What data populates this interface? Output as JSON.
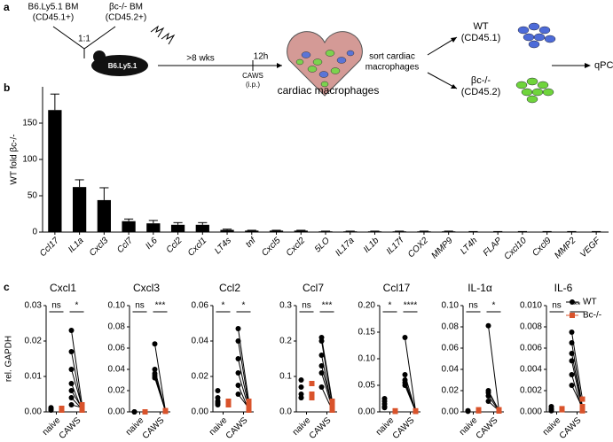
{
  "panel_labels": [
    "a",
    "b",
    "c"
  ],
  "schematic": {
    "donor1": [
      "B6.Ly5.1 BM",
      "(CD45.1+)"
    ],
    "donor2": [
      "βc-/- BM",
      "(CD45.2+)"
    ],
    "ratio": "1:1",
    "recipient": "B6.Ly5.1",
    "wait": ">8 wks",
    "time": "12h",
    "treatment": [
      "CAWS",
      "(i.p.)"
    ],
    "sort": [
      "sort cardiac",
      "macrophages"
    ],
    "out1": [
      "WT",
      "(CD45.1)"
    ],
    "out2": [
      "βc-/-",
      "(CD45.2)"
    ],
    "readout": "qPCR"
  },
  "chart_data": [
    {
      "type": "bar",
      "title": "cardiac macrophages",
      "ylabel": "WT fold βc-/-",
      "color": "#000000",
      "categories": [
        "Ccl17",
        "IL1a",
        "Cxcl3",
        "Ccl7",
        "IL6",
        "Ccl2",
        "Cxcl1",
        "LT4s",
        "tnf",
        "Cxcl5",
        "Cxcl2",
        "5LO",
        "IL17a",
        "IL1b",
        "IL17f",
        "COX2",
        "MMP9",
        "LT4h",
        "FLAP",
        "Cxcl10",
        "Cxcl9",
        "MMP2",
        "VEGF"
      ],
      "values": [
        168,
        62,
        44,
        15,
        12,
        10,
        10,
        3,
        2,
        2,
        2,
        1,
        1,
        1,
        1,
        1,
        1,
        0.5,
        0.5,
        0.5,
        0.5,
        0.5,
        0.5
      ],
      "errors": [
        22,
        10,
        17,
        3,
        4,
        3,
        3,
        1,
        0.5,
        0.5,
        0.5,
        0.3,
        0.3,
        0.3,
        0.3,
        0.3,
        0.3,
        0.2,
        0.2,
        0.2,
        0.2,
        0.2,
        0.2
      ],
      "ylim": [
        0,
        200
      ],
      "yticks": [
        0,
        50,
        100,
        150
      ]
    },
    {
      "type": "dot",
      "title": "Cxcl1",
      "ylabel": "rel. GAPDH",
      "categories": [
        "naive",
        "CAWS"
      ],
      "annotations": [
        "ns",
        "*"
      ],
      "ylim": [
        0,
        0.03
      ],
      "yticks": [
        {
          "value": 0,
          "label": "0.00"
        },
        0.01,
        0.02,
        0.03
      ],
      "series": [
        {
          "name": "WT",
          "color": "#000000",
          "values": [
            [
              0.0005,
              0.001,
              0.0008,
              0.0012,
              0.0006
            ],
            [
              0.023,
              0.017,
              0.012,
              0.008,
              0.006,
              0.004,
              0.002
            ]
          ]
        },
        {
          "name": "Bc-/-",
          "color": "#d9532b",
          "values": [
            [
              0.0005,
              0.001,
              0.0008
            ],
            [
              0.002,
              0.001,
              0.0015,
              0.0005,
              0.001,
              0.0008,
              0.0012
            ]
          ]
        }
      ]
    },
    {
      "type": "dot",
      "title": "Cxcl3",
      "categories": [
        "naive",
        "CAWS"
      ],
      "annotations": [
        "ns",
        "***"
      ],
      "ylim": [
        0,
        0.1
      ],
      "yticks": [
        {
          "value": 0,
          "label": "0.00"
        },
        0.02,
        0.04,
        0.06,
        0.08,
        {
          "value": 0.1,
          "label": "0.10"
        }
      ],
      "series": [
        {
          "name": "WT",
          "color": "#000000",
          "values": [
            [
              0,
              0,
              0
            ],
            [
              0.064,
              0.04,
              0.036,
              0.034,
              0.032
            ]
          ]
        },
        {
          "name": "Bc-/-",
          "color": "#d9532b",
          "values": [
            [
              0,
              0
            ],
            [
              0.001,
              0.001,
              0.001,
              0.0005,
              0.001
            ]
          ]
        }
      ]
    },
    {
      "type": "dot",
      "title": "Ccl2",
      "categories": [
        "naive",
        "CAWS"
      ],
      "annotations": [
        "*",
        "*"
      ],
      "ylim": [
        0,
        0.06
      ],
      "yticks": [
        {
          "value": 0,
          "label": "0.00"
        },
        0.02,
        0.04,
        0.06
      ],
      "series": [
        {
          "name": "WT",
          "color": "#000000",
          "values": [
            [
              0.012,
              0.008,
              0.006,
              0.005,
              0.004
            ],
            [
              0.047,
              0.04,
              0.03,
              0.022,
              0.015,
              0.01
            ]
          ]
        },
        {
          "name": "Bc-/-",
          "color": "#d9532b",
          "values": [
            [
              0.005,
              0.006,
              0.004
            ],
            [
              0.006,
              0.004,
              0.003,
              0.002,
              0.001,
              0.002
            ]
          ]
        }
      ]
    },
    {
      "type": "dot",
      "title": "Ccl7",
      "categories": [
        "naive",
        "CAWS"
      ],
      "annotations": [
        "ns",
        "***"
      ],
      "ylim": [
        0,
        0.3
      ],
      "yticks": [
        {
          "value": 0,
          "label": "0.0"
        },
        0.1,
        0.2,
        0.3
      ],
      "series": [
        {
          "name": "WT",
          "color": "#000000",
          "values": [
            [
              0.09,
              0.07,
              0.05,
              0.04,
              0.04
            ],
            [
              0.21,
              0.2,
              0.16,
              0.13,
              0.11,
              0.07
            ]
          ]
        },
        {
          "name": "Bc-/-",
          "color": "#d9532b",
          "values": [
            [
              0.08,
              0.04,
              0.05
            ],
            [
              0.03,
              0.02,
              0.01,
              0.015,
              0.01,
              0.005
            ]
          ]
        }
      ]
    },
    {
      "type": "dot",
      "title": "Ccl17",
      "categories": [
        "naive",
        "CAWS"
      ],
      "annotations": [
        "*",
        "****"
      ],
      "ylim": [
        0,
        0.2
      ],
      "yticks": [
        {
          "value": 0,
          "label": "0.00"
        },
        0.05,
        {
          "value": 0.1,
          "label": "0.10"
        },
        0.15,
        {
          "value": 0.2,
          "label": "0.20"
        }
      ],
      "series": [
        {
          "name": "WT",
          "color": "#000000",
          "values": [
            [
              0.025,
              0.02,
              0.015,
              0.01,
              0.008
            ],
            [
              0.14,
              0.07,
              0.06,
              0.055,
              0.05
            ]
          ]
        },
        {
          "name": "Bc-/-",
          "color": "#d9532b",
          "values": [
            [
              0.002,
              0.001,
              0.001
            ],
            [
              0.002,
              0.001,
              0.001,
              0.001,
              0.001
            ]
          ]
        }
      ]
    },
    {
      "type": "dot",
      "title": "IL-1α",
      "categories": [
        "naive",
        "CAWS"
      ],
      "annotations": [
        "ns",
        "*"
      ],
      "ylim": [
        0,
        0.1
      ],
      "yticks": [
        {
          "value": 0,
          "label": "0.00"
        },
        0.02,
        0.04,
        0.06,
        0.08,
        {
          "value": 0.1,
          "label": "0.10"
        }
      ],
      "series": [
        {
          "name": "WT",
          "color": "#000000",
          "values": [
            [
              0.001,
              0.0005,
              0.001
            ],
            [
              0.081,
              0.02,
              0.018,
              0.015,
              0.01
            ]
          ]
        },
        {
          "name": "Bc-/-",
          "color": "#d9532b",
          "values": [
            [
              0.002,
              0.001
            ],
            [
              0.001,
              0.001,
              0.002,
              0.001,
              0.001
            ]
          ]
        }
      ]
    },
    {
      "type": "dot",
      "title": "IL-6",
      "categories": [
        "naive",
        "CAWS"
      ],
      "annotations": [
        "ns",
        "**"
      ],
      "ylim": [
        0,
        0.01
      ],
      "yticks": [
        {
          "value": 0,
          "label": "0.000"
        },
        0.002,
        0.004,
        0.006,
        0.008,
        {
          "value": 0.01,
          "label": "0.010"
        }
      ],
      "legend": "top-right",
      "series": [
        {
          "name": "WT",
          "color": "#000000",
          "values": [
            [
              0.0005,
              0.0003,
              0.0002,
              0.0001
            ],
            [
              0.0075,
              0.0065,
              0.0055,
              0.0048,
              0.0035,
              0.0025
            ]
          ]
        },
        {
          "name": "Bc-/-",
          "color": "#d9532b",
          "values": [
            [
              0.0003,
              0.0002
            ],
            [
              0.0012,
              0.0005,
              0.0003,
              0.0002,
              0.0001,
              0.0004
            ]
          ]
        }
      ]
    }
  ]
}
